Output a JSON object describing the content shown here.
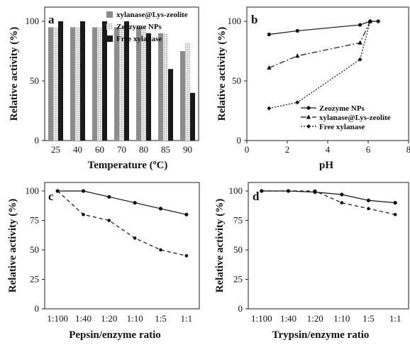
{
  "chart_data": [
    {
      "panel": "a",
      "type": "bar",
      "categories": [
        "25",
        "40",
        "60",
        "70",
        "80",
        "85",
        "90"
      ],
      "series": [
        {
          "name": "xylanase@Lys-zeolite",
          "values": [
            95,
            95,
            95,
            95,
            95,
            90,
            75
          ],
          "color": "#8c8c8c",
          "pattern": "solid-gray"
        },
        {
          "name": "Zeozyme NPs",
          "values": [
            95,
            95,
            95,
            95,
            95,
            90,
            82
          ],
          "color": "#d6d6d6",
          "pattern": "dotted-light"
        },
        {
          "name": "Free xylanase",
          "values": [
            100,
            100,
            100,
            100,
            90,
            60,
            40
          ],
          "color": "#1a1a1a",
          "pattern": "solid-black"
        }
      ],
      "xlabel": "Temperature (ºC)",
      "ylabel": "Relative activity (%)",
      "ylim": [
        0,
        100
      ],
      "yticks": [
        "0",
        "50",
        "100"
      ],
      "legend": "top-right",
      "grid": false
    },
    {
      "panel": "b",
      "type": "line",
      "series": [
        {
          "name": "Zeozyme NPs",
          "x": [
            1.1,
            2.5,
            5.6,
            6.1,
            6.5
          ],
          "y": [
            89,
            92,
            97,
            100,
            100
          ],
          "style": "solid",
          "marker": "circle"
        },
        {
          "name": "xylanase@Lys-zeolite",
          "x": [
            1.1,
            2.5,
            5.6,
            6.1
          ],
          "y": [
            61,
            71,
            82,
            100
          ],
          "style": "dashdot",
          "marker": "triangle"
        },
        {
          "name": "Free xylanase",
          "x": [
            1.1,
            2.5,
            5.6,
            6.1
          ],
          "y": [
            27,
            32,
            68,
            100
          ],
          "style": "dotted",
          "marker": "diamond"
        }
      ],
      "xlabel": "pH",
      "ylabel": "Relative activity (%)",
      "xlim": [
        0,
        8
      ],
      "ylim": [
        0,
        100
      ],
      "xticks": [
        "0",
        "2",
        "4",
        "6",
        "8"
      ],
      "yticks": [
        "0",
        "50",
        "100"
      ],
      "legend": "bottom-right",
      "grid": false
    },
    {
      "panel": "c",
      "type": "line",
      "categories": [
        "1:100",
        "1:40",
        "1:20",
        "1:10",
        "1:5",
        "1:1"
      ],
      "series": [
        {
          "values": [
            100,
            100,
            95,
            90,
            85,
            80
          ],
          "style": "solid"
        },
        {
          "values": [
            100,
            80,
            75,
            60,
            50,
            45
          ],
          "style": "dashed"
        }
      ],
      "xlabel": "Pepsin/enzyme ratio",
      "ylabel": "Relative activity (%)",
      "ylim": [
        0,
        100
      ],
      "yticks": [
        "0",
        "25",
        "50",
        "75",
        "100"
      ],
      "grid": false
    },
    {
      "panel": "d",
      "type": "line",
      "categories": [
        "1:100",
        "1:40",
        "1:20",
        "1:10",
        "1:5",
        "1:1"
      ],
      "series": [
        {
          "values": [
            100,
            100,
            99,
            97,
            92,
            90
          ],
          "style": "solid"
        },
        {
          "values": [
            100,
            100,
            100,
            90,
            85,
            80
          ],
          "style": "dashed"
        }
      ],
      "xlabel": "Trypsin/enzyme ratio",
      "ylabel": "Relative activity (%)",
      "ylim": [
        0,
        100
      ],
      "yticks": [
        "0",
        "25",
        "50",
        "75",
        "100"
      ],
      "grid": false
    }
  ]
}
